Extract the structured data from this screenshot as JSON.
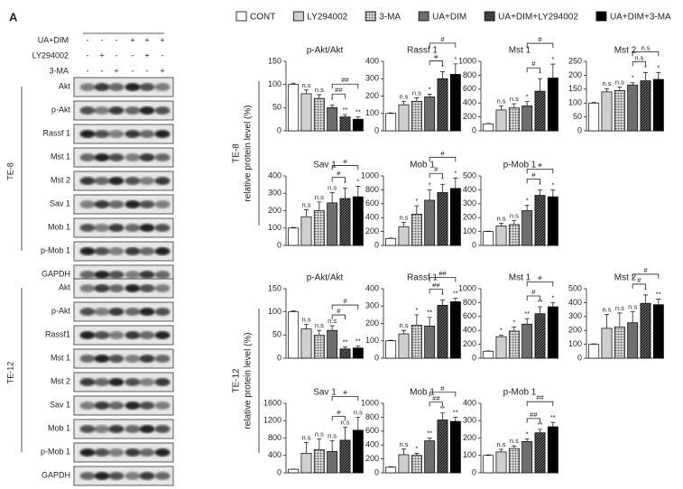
{
  "figure": {
    "panel": "A",
    "ylabel": "relative protein level (%)",
    "treatments": [
      {
        "name": "UA+DIM",
        "signs": [
          "-",
          "-",
          "-",
          "+",
          "+",
          "+"
        ]
      },
      {
        "name": "LY294002",
        "signs": [
          "-",
          "+",
          "-",
          "-",
          "+",
          "-"
        ]
      },
      {
        "name": "3-MA",
        "signs": [
          "-",
          "-",
          "+",
          "-",
          "-",
          "+"
        ]
      }
    ],
    "blots": [
      {
        "cell": "TE-8",
        "bands": [
          "Akt",
          "p-Akt",
          "Rassf 1",
          "Mst 1",
          "Mst 2",
          "Sav 1",
          "Mob 1",
          "p-Mob 1",
          "GAPDH"
        ]
      },
      {
        "cell": "TE-12",
        "bands": [
          "Akt",
          "p-Akt",
          "Rassf1",
          "Mst 1",
          "Mst 2",
          "Sav 1",
          "Mob 1",
          "p-Mob 1",
          "GAPDH"
        ]
      }
    ],
    "legend": [
      {
        "name": "CONT",
        "color": "#ffffff"
      },
      {
        "name": "LY294002",
        "color": "#cfcfcf"
      },
      {
        "name": "3-MA",
        "color": "#9a9a9a",
        "pattern": "dots"
      },
      {
        "name": "UA+DIM",
        "color": "#6e6e6e"
      },
      {
        "name": "UA+DIM+LY294002",
        "color": "#333333",
        "pattern": "hatch"
      },
      {
        "name": "UA+DIM+3-MA",
        "color": "#000000"
      }
    ]
  },
  "chart_data": [
    {
      "type": "bar",
      "title": "p-Akt/Akt",
      "values": [
        100,
        80,
        70,
        50,
        30,
        25
      ],
      "errors": [
        3,
        8,
        8,
        6,
        5,
        5
      ],
      "annotations": [
        null,
        "n.s",
        "n.s",
        "*",
        "**",
        "**"
      ],
      "brackets": [
        {
          "from": 3,
          "to": 4,
          "label": "##"
        },
        {
          "from": 3,
          "to": 5,
          "label": "##"
        }
      ],
      "ylim": [
        0,
        150
      ],
      "yticks": [
        0,
        50,
        100,
        150
      ]
    },
    {
      "type": "bar",
      "title": "Rassf 1",
      "values": [
        100,
        150,
        170,
        195,
        300,
        325
      ],
      "errors": [
        3,
        20,
        20,
        15,
        40,
        60
      ],
      "annotations": [
        null,
        "n.s",
        "n.s",
        "*",
        "*",
        "*"
      ],
      "brackets": [
        {
          "from": 3,
          "to": 4,
          "label": "#"
        },
        {
          "from": 3,
          "to": 5,
          "label": "#"
        }
      ],
      "ylim": [
        0,
        400
      ],
      "yticks": [
        0,
        100,
        200,
        300,
        400
      ]
    },
    {
      "type": "bar",
      "title": "Mst 1",
      "values": [
        100,
        300,
        330,
        360,
        570,
        760
      ],
      "errors": [
        5,
        60,
        60,
        60,
        180,
        200
      ],
      "annotations": [
        null,
        "n.s",
        "n.s",
        "*",
        "*",
        "*"
      ],
      "brackets": [
        {
          "from": 3,
          "to": 4,
          "label": "#"
        },
        {
          "from": 3,
          "to": 5,
          "label": "#"
        }
      ],
      "ylim": [
        0,
        1000
      ],
      "yticks": [
        0,
        200,
        400,
        600,
        800,
        1000
      ]
    },
    {
      "type": "bar",
      "title": "Mst 2",
      "values": [
        100,
        140,
        145,
        165,
        180,
        185
      ],
      "errors": [
        2,
        12,
        12,
        8,
        30,
        25
      ],
      "annotations": [
        null,
        "n.s",
        "n.s",
        "*",
        "*",
        "*"
      ],
      "brackets": [
        {
          "from": 3,
          "to": 4,
          "label": "n.s"
        },
        {
          "from": 3,
          "to": 5,
          "label": "n.s"
        }
      ],
      "ylim": [
        0,
        250
      ],
      "yticks": [
        0,
        50,
        100,
        150,
        200,
        250
      ]
    },
    {
      "type": "bar",
      "title": "Sav 1",
      "values": [
        100,
        165,
        200,
        245,
        270,
        280
      ],
      "errors": [
        3,
        40,
        50,
        60,
        60,
        60
      ],
      "annotations": [
        null,
        "n.s",
        "n.s",
        "n.s",
        "*",
        "*"
      ],
      "brackets": [
        {
          "from": 3,
          "to": 4,
          "label": "#"
        },
        {
          "from": 3,
          "to": 5,
          "label": "#"
        }
      ],
      "ylim": [
        0,
        400
      ],
      "yticks": [
        0,
        100,
        200,
        300,
        400
      ]
    },
    {
      "type": "bar",
      "title": "Mob 1",
      "values": [
        100,
        270,
        450,
        650,
        760,
        820
      ],
      "errors": [
        5,
        60,
        120,
        150,
        120,
        150
      ],
      "annotations": [
        null,
        "n.s",
        "*",
        "*",
        "*",
        "*"
      ],
      "brackets": [
        {
          "from": 3,
          "to": 4,
          "label": "#"
        },
        {
          "from": 3,
          "to": 5,
          "label": "#"
        }
      ],
      "ylim": [
        0,
        1000
      ],
      "yticks": [
        0,
        200,
        400,
        600,
        800,
        1000
      ]
    },
    {
      "type": "bar",
      "title": "p-Mob 1",
      "values": [
        100,
        140,
        150,
        250,
        360,
        350
      ],
      "errors": [
        3,
        20,
        30,
        40,
        40,
        50
      ],
      "annotations": [
        null,
        "n.s",
        "n.s",
        "*",
        "*",
        "*"
      ],
      "brackets": [
        {
          "from": 3,
          "to": 4,
          "label": "#"
        },
        {
          "from": 3,
          "to": 5,
          "label": "#"
        }
      ],
      "ylim": [
        0,
        500
      ],
      "yticks": [
        0,
        100,
        200,
        300,
        400,
        500
      ]
    },
    {
      "type": "bar",
      "title": "p-Akt/Akt",
      "values": [
        100,
        63,
        50,
        60,
        20,
        22
      ],
      "errors": [
        2,
        10,
        10,
        10,
        4,
        4
      ],
      "annotations": [
        null,
        "n.s",
        "n.s",
        "n.s",
        "**",
        "**"
      ],
      "brackets": [
        {
          "from": 3,
          "to": 4,
          "label": "#"
        },
        {
          "from": 3,
          "to": 5,
          "label": "#"
        }
      ],
      "ylim": [
        0,
        150
      ],
      "yticks": [
        0,
        50,
        100,
        150
      ]
    },
    {
      "type": "bar",
      "title": "Rassf 1",
      "values": [
        100,
        140,
        190,
        185,
        305,
        325
      ],
      "errors": [
        3,
        20,
        60,
        50,
        30,
        20
      ],
      "annotations": [
        null,
        "n.s",
        "*",
        "**",
        "*",
        "**"
      ],
      "brackets": [
        {
          "from": 3,
          "to": 4,
          "label": "##"
        },
        {
          "from": 3,
          "to": 5,
          "label": "##"
        }
      ],
      "ylim": [
        0,
        400
      ],
      "yticks": [
        0,
        100,
        200,
        300,
        400
      ]
    },
    {
      "type": "bar",
      "title": "Mst 1",
      "values": [
        100,
        310,
        390,
        490,
        640,
        740
      ],
      "errors": [
        5,
        20,
        60,
        80,
        100,
        60
      ],
      "annotations": [
        null,
        "*",
        "*",
        "**",
        "**",
        "*"
      ],
      "brackets": [
        {
          "from": 3,
          "to": 4,
          "label": "#"
        },
        {
          "from": 3,
          "to": 5,
          "label": "#"
        }
      ],
      "ylim": [
        0,
        1000
      ],
      "yticks": [
        0,
        200,
        400,
        600,
        800,
        1000
      ]
    },
    {
      "type": "bar",
      "title": "Mst 2",
      "values": [
        100,
        215,
        225,
        255,
        395,
        385
      ],
      "errors": [
        3,
        100,
        100,
        80,
        60,
        40
      ],
      "annotations": [
        null,
        "n.s",
        "n.s",
        "n.s",
        "*",
        "**"
      ],
      "brackets": [
        {
          "from": 3,
          "to": 4,
          "label": "#"
        },
        {
          "from": 3,
          "to": 5,
          "label": "#"
        }
      ],
      "ylim": [
        0,
        500
      ],
      "yticks": [
        0,
        100,
        200,
        300,
        400,
        500
      ]
    },
    {
      "type": "bar",
      "title": "Sav 1",
      "values": [
        80,
        450,
        530,
        490,
        750,
        980
      ],
      "errors": [
        5,
        250,
        250,
        250,
        300,
        300
      ],
      "annotations": [
        null,
        "n.s",
        "n.s",
        "n.s",
        "n.s",
        "n.s"
      ],
      "brackets": [
        {
          "from": 3,
          "to": 4,
          "label": "#"
        },
        {
          "from": 3,
          "to": 5,
          "label": "#"
        }
      ],
      "ylim": [
        0,
        1600
      ],
      "yticks": [
        0,
        400,
        800,
        1200,
        1600
      ]
    },
    {
      "type": "bar",
      "title": "Mob 1",
      "values": [
        80,
        260,
        250,
        460,
        760,
        740
      ],
      "errors": [
        5,
        80,
        30,
        40,
        100,
        60
      ],
      "annotations": [
        null,
        "n.s",
        "*",
        "**",
        "**",
        "**"
      ],
      "brackets": [
        {
          "from": 3,
          "to": 4,
          "label": "##"
        },
        {
          "from": 3,
          "to": 5,
          "label": "#"
        }
      ],
      "ylim": [
        0,
        1000
      ],
      "yticks": [
        0,
        200,
        400,
        600,
        800,
        1000
      ]
    },
    {
      "type": "bar",
      "title": "p-Mob 1",
      "values": [
        100,
        120,
        140,
        180,
        230,
        265
      ],
      "errors": [
        3,
        15,
        15,
        15,
        20,
        25
      ],
      "annotations": [
        null,
        "n.s",
        "n.s",
        "*",
        "**",
        "**"
      ],
      "brackets": [
        {
          "from": 3,
          "to": 4,
          "label": "##"
        },
        {
          "from": 3,
          "to": 5,
          "label": "##"
        }
      ],
      "ylim": [
        0,
        400
      ],
      "yticks": [
        0,
        100,
        200,
        300,
        400
      ]
    }
  ]
}
